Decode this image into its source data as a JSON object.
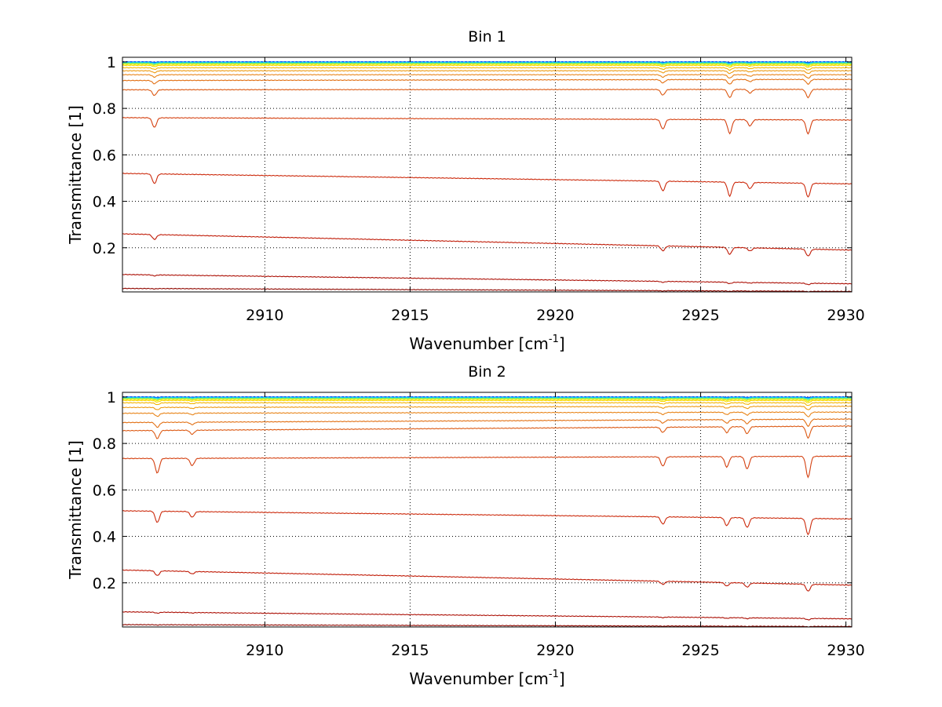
{
  "figure": {
    "xlabel_main": "Wavenumber [cm",
    "xlabel_sup": "-1",
    "xlabel_end": "]",
    "ylabel": "Transmittance [1]"
  },
  "chart_data": [
    {
      "type": "line",
      "title": "Bin 1",
      "xlabel": "Wavenumber [cm-1]",
      "ylabel": "Transmittance [1]",
      "xlim": [
        2905.1,
        2930.2
      ],
      "ylim": [
        0.01,
        1.02
      ],
      "xticks": [
        2910,
        2915,
        2920,
        2925,
        2930
      ],
      "yticks": [
        0.2,
        0.4,
        0.6,
        0.8,
        1
      ],
      "ytick_labels": [
        "0.2",
        "0.4",
        "0.6",
        "0.8",
        "1"
      ],
      "xtick_labels": [
        "2910",
        "2915",
        "2920",
        "2925",
        "2930"
      ],
      "grid": true,
      "line_positions": [
        2906.2,
        2923.7,
        2926.0,
        2926.7,
        2928.7
      ],
      "line_weights": [
        0.7,
        0.7,
        1.0,
        0.45,
        1.0
      ],
      "series": [
        {
          "start": 1.0,
          "end": 1.0,
          "depth": 0.002,
          "color": "#0000c8"
        },
        {
          "start": 1.0,
          "end": 1.0,
          "depth": 0.003,
          "color": "#0060ff"
        },
        {
          "start": 0.998,
          "end": 0.998,
          "depth": 0.004,
          "color": "#00b4ff"
        },
        {
          "start": 0.996,
          "end": 0.996,
          "depth": 0.005,
          "color": "#30e6c8"
        },
        {
          "start": 0.993,
          "end": 0.993,
          "depth": 0.006,
          "color": "#90f060"
        },
        {
          "start": 0.99,
          "end": 0.99,
          "depth": 0.007,
          "color": "#e6ee00"
        },
        {
          "start": 0.985,
          "end": 0.985,
          "depth": 0.008,
          "color": "#f8d800"
        },
        {
          "start": 0.975,
          "end": 0.975,
          "depth": 0.01,
          "color": "#f4b400"
        },
        {
          "start": 0.962,
          "end": 0.962,
          "depth": 0.012,
          "color": "#ee9a10"
        },
        {
          "start": 0.945,
          "end": 0.945,
          "depth": 0.015,
          "color": "#e88418"
        },
        {
          "start": 0.92,
          "end": 0.925,
          "depth": 0.02,
          "color": "#e27014"
        },
        {
          "start": 0.88,
          "end": 0.882,
          "depth": 0.035,
          "color": "#dc5a14"
        },
        {
          "start": 0.76,
          "end": 0.75,
          "depth": 0.06,
          "color": "#d44010"
        },
        {
          "start": 0.52,
          "end": 0.475,
          "depth": 0.06,
          "color": "#cc2a0c"
        },
        {
          "start": 0.26,
          "end": 0.19,
          "depth": 0.03,
          "color": "#c01c08"
        },
        {
          "start": 0.085,
          "end": 0.045,
          "depth": 0.006,
          "color": "#ac1006"
        },
        {
          "start": 0.025,
          "end": 0.012,
          "depth": 0.002,
          "color": "#900800"
        }
      ]
    },
    {
      "type": "line",
      "title": "Bin 2",
      "xlabel": "Wavenumber [cm-1]",
      "ylabel": "Transmittance [1]",
      "xlim": [
        2905.1,
        2930.2
      ],
      "ylim": [
        0.01,
        1.02
      ],
      "xticks": [
        2910,
        2915,
        2920,
        2925,
        2930
      ],
      "yticks": [
        0.2,
        0.4,
        0.6,
        0.8,
        1
      ],
      "ytick_labels": [
        "0.2",
        "0.4",
        "0.6",
        "0.8",
        "1"
      ],
      "xtick_labels": [
        "2910",
        "2915",
        "2920",
        "2925",
        "2930"
      ],
      "grid": true,
      "line_positions": [
        2906.3,
        2907.5,
        2923.7,
        2925.9,
        2926.6,
        2928.7
      ],
      "line_weights": [
        0.7,
        0.35,
        0.45,
        0.5,
        0.6,
        1.0
      ],
      "series": [
        {
          "start": 1.0,
          "end": 1.0,
          "depth": 0.002,
          "color": "#0000c8"
        },
        {
          "start": 1.0,
          "end": 1.0,
          "depth": 0.003,
          "color": "#0060ff"
        },
        {
          "start": 0.998,
          "end": 0.998,
          "depth": 0.004,
          "color": "#00b4ff"
        },
        {
          "start": 0.996,
          "end": 0.996,
          "depth": 0.005,
          "color": "#30e6c8"
        },
        {
          "start": 0.993,
          "end": 0.993,
          "depth": 0.006,
          "color": "#90f060"
        },
        {
          "start": 0.99,
          "end": 0.99,
          "depth": 0.008,
          "color": "#e6ee00"
        },
        {
          "start": 0.985,
          "end": 0.985,
          "depth": 0.01,
          "color": "#f8d800"
        },
        {
          "start": 0.975,
          "end": 0.975,
          "depth": 0.012,
          "color": "#f4b400"
        },
        {
          "start": 0.955,
          "end": 0.96,
          "depth": 0.015,
          "color": "#ee9a10"
        },
        {
          "start": 0.93,
          "end": 0.935,
          "depth": 0.02,
          "color": "#e88418"
        },
        {
          "start": 0.89,
          "end": 0.905,
          "depth": 0.03,
          "color": "#e27014"
        },
        {
          "start": 0.855,
          "end": 0.875,
          "depth": 0.05,
          "color": "#dc5a14"
        },
        {
          "start": 0.735,
          "end": 0.745,
          "depth": 0.09,
          "color": "#d44010"
        },
        {
          "start": 0.51,
          "end": 0.475,
          "depth": 0.07,
          "color": "#cc2a0c"
        },
        {
          "start": 0.255,
          "end": 0.19,
          "depth": 0.03,
          "color": "#c01c08"
        },
        {
          "start": 0.075,
          "end": 0.045,
          "depth": 0.006,
          "color": "#ac1006"
        },
        {
          "start": 0.02,
          "end": 0.012,
          "depth": 0.002,
          "color": "#900800"
        }
      ]
    }
  ]
}
